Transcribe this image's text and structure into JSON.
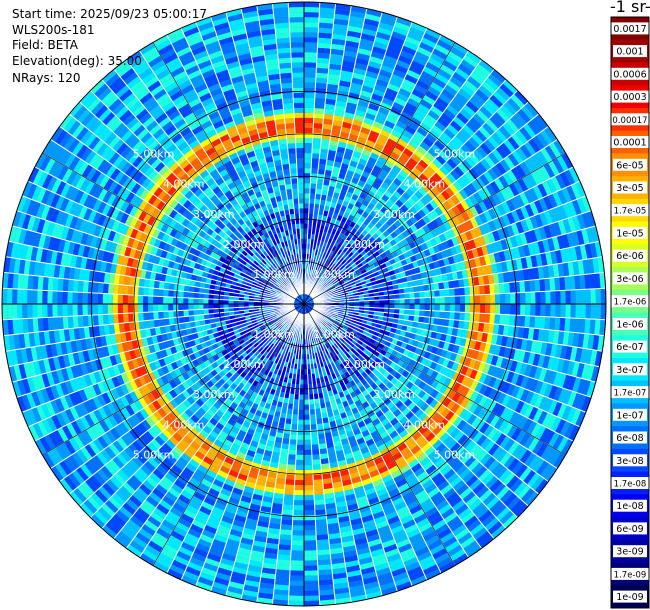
{
  "info": {
    "start_time": "Start time: 2025/09/23 05:00:17",
    "instrument": "WLS200s-181",
    "field": "Field: BETA",
    "elevation": "Elevation(deg): 35.00",
    "nrays": "NRays: 120"
  },
  "colorbar": {
    "unit_label": "-1 sr-",
    "labels": [
      "0.0017",
      "0.001",
      "0.0006",
      "0.0003",
      "0.00017",
      "0.0001",
      "6e-05",
      "3e-05",
      "1.7e-05",
      "1e-05",
      "6e-06",
      "3e-06",
      "1.7e-06",
      "1e-06",
      "6e-07",
      "3e-07",
      "1.7e-07",
      "1e-07",
      "6e-08",
      "3e-08",
      "1.7e-08",
      "1e-08",
      "6e-09",
      "3e-09",
      "1.7e-09",
      "1e-09"
    ],
    "colors": [
      "#800000",
      "#a00000",
      "#c80000",
      "#f00000",
      "#ff3000",
      "#ff6000",
      "#ff9000",
      "#ffb000",
      "#ffd800",
      "#ffff00",
      "#d8ff28",
      "#a8ff58",
      "#78ff88",
      "#48ffb8",
      "#20ffe0",
      "#00e8ff",
      "#00c0ff",
      "#0098ff",
      "#0070ff",
      "#0048ff",
      "#0020ff",
      "#0000f0",
      "#0000c8",
      "#0000a0",
      "#000078",
      "#000050"
    ]
  },
  "chart_data": {
    "type": "heatmap",
    "projection": "polar-ppi",
    "field": "BETA",
    "nrays": 120,
    "elevation_deg": 35.0,
    "range_rings_km": [
      1,
      2,
      3,
      4,
      5
    ],
    "ring_labels": [
      "1.00km",
      "2.00km",
      "3.00km",
      "4.00km",
      "5.00km"
    ],
    "max_range_km": 7.1,
    "high_backscatter_ring_km": 4.2,
    "color_scale": "log"
  }
}
